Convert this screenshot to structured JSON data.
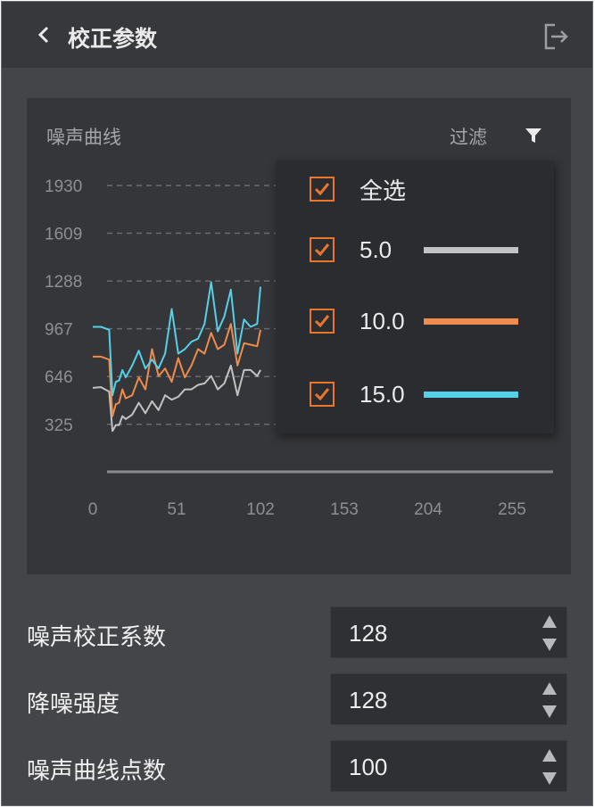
{
  "header": {
    "title": "校正参数",
    "back_icon": "chevron-left-icon",
    "exit_icon": "logout-icon"
  },
  "chart": {
    "title": "噪声曲线",
    "filter_label": "过滤",
    "filter_icon": "filter-icon",
    "colors": {
      "s5": "#c2c2c2",
      "s10": "#ef8b4c",
      "s15": "#55d0e6",
      "accent": "#e9762a"
    }
  },
  "filter_menu": {
    "items": [
      {
        "label": "全选",
        "checked": true
      },
      {
        "label": "5.0",
        "checked": true
      },
      {
        "label": "10.0",
        "checked": true
      },
      {
        "label": "15.0",
        "checked": true
      }
    ]
  },
  "chart_data": {
    "type": "line",
    "title": "噪声曲线",
    "xlabel": "",
    "ylabel": "",
    "x_ticks": [
      "0",
      "51",
      "102",
      "153",
      "204",
      "255"
    ],
    "y_ticks": [
      "1930",
      "1609",
      "1288",
      "967",
      "646",
      "325"
    ],
    "xlim": [
      0,
      255
    ],
    "ylim": [
      0,
      2250
    ],
    "grid": "horizontal-dashed",
    "series": [
      {
        "name": "5.0",
        "x": [
          0,
          5,
          10,
          12,
          14,
          16,
          18,
          20,
          24,
          28,
          32,
          36,
          40,
          44,
          48,
          52,
          56,
          60,
          64,
          68,
          72,
          76,
          80,
          84,
          88,
          92,
          96,
          100,
          102
        ],
        "y": [
          570,
          575,
          545,
          280,
          320,
          320,
          380,
          360,
          390,
          470,
          400,
          480,
          420,
          520,
          490,
          510,
          560,
          560,
          590,
          600,
          650,
          560,
          600,
          720,
          520,
          690,
          690,
          650,
          690
        ]
      },
      {
        "name": "10.0",
        "x": [
          0,
          5,
          10,
          12,
          14,
          16,
          18,
          20,
          24,
          28,
          32,
          36,
          40,
          44,
          48,
          52,
          56,
          60,
          64,
          68,
          72,
          76,
          80,
          84,
          88,
          92,
          96,
          100,
          102
        ],
        "y": [
          780,
          780,
          760,
          380,
          460,
          470,
          560,
          500,
          520,
          640,
          560,
          830,
          650,
          700,
          610,
          770,
          640,
          720,
          830,
          800,
          940,
          830,
          860,
          1000,
          720,
          870,
          860,
          850,
          960
        ]
      },
      {
        "name": "15.0",
        "x": [
          0,
          5,
          10,
          12,
          14,
          16,
          18,
          20,
          24,
          28,
          32,
          36,
          40,
          44,
          48,
          52,
          56,
          60,
          64,
          68,
          72,
          76,
          80,
          84,
          88,
          92,
          96,
          100,
          102
        ],
        "y": [
          980,
          980,
          960,
          520,
          610,
          620,
          690,
          640,
          720,
          820,
          700,
          760,
          700,
          800,
          1100,
          800,
          830,
          880,
          900,
          1000,
          1280,
          950,
          1050,
          1230,
          800,
          1030,
          980,
          1000,
          1250
        ]
      }
    ]
  },
  "fields": [
    {
      "label": "噪声校正系数",
      "value": "128"
    },
    {
      "label": "降噪强度",
      "value": "128"
    },
    {
      "label": "噪声曲线点数",
      "value": "100"
    }
  ]
}
